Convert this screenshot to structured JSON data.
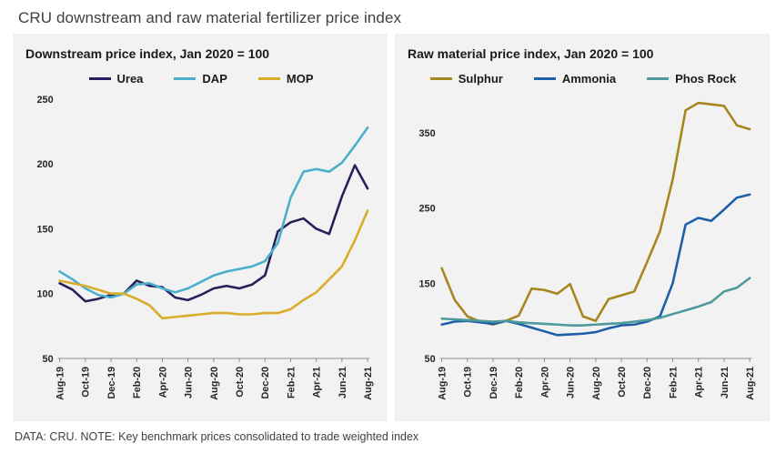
{
  "page": {
    "title": "CRU downstream and raw material fertilizer price index",
    "footnote": "DATA: CRU. NOTE: Key benchmark prices consolidated to trade weighted index"
  },
  "colors": {
    "panel_background": "#f2f2f2",
    "title_text": "#3f3f3f",
    "axis_text": "#262626",
    "axis_line": "#8c8c8c"
  },
  "chart_data": [
    {
      "type": "line",
      "title": "Downstream price index, Jan 2020 = 100",
      "x": [
        "Aug-19",
        "Sep-19",
        "Oct-19",
        "Nov-19",
        "Dec-19",
        "Jan-20",
        "Feb-20",
        "Mar-20",
        "Apr-20",
        "May-20",
        "Jun-20",
        "Jul-20",
        "Aug-20",
        "Sep-20",
        "Oct-20",
        "Nov-20",
        "Dec-20",
        "Jan-21",
        "Feb-21",
        "Mar-21",
        "Apr-21",
        "May-21",
        "Jun-21",
        "Jul-21",
        "Aug-21"
      ],
      "x_tick_every": 2,
      "xlabel": "",
      "ylabel": "",
      "ylim": [
        50,
        250
      ],
      "yticks": [
        50,
        100,
        150,
        200,
        250
      ],
      "grid": false,
      "legend_position": "top",
      "series": [
        {
          "name": "Urea",
          "color": "#26215A",
          "values": [
            108,
            103,
            94,
            96,
            99,
            100,
            110,
            106,
            105,
            97,
            95,
            99,
            104,
            106,
            104,
            107,
            114,
            148,
            155,
            158,
            150,
            146,
            175,
            199,
            181
          ]
        },
        {
          "name": "DAP",
          "color": "#4BAFCC",
          "values": [
            117,
            111,
            104,
            99,
            97,
            100,
            107,
            108,
            104,
            101,
            104,
            109,
            114,
            117,
            119,
            121,
            125,
            139,
            174,
            194,
            196,
            194,
            201,
            214,
            228
          ]
        },
        {
          "name": "MOP",
          "color": "#D9AC2A",
          "values": [
            110,
            108,
            106,
            103,
            100,
            100,
            96,
            91,
            81,
            82,
            83,
            84,
            85,
            85,
            84,
            84,
            85,
            85,
            88,
            95,
            101,
            111,
            121,
            141,
            164
          ]
        }
      ]
    },
    {
      "type": "line",
      "title": "Raw material price index, Jan 2020 = 100",
      "x": [
        "Aug-19",
        "Sep-19",
        "Oct-19",
        "Nov-19",
        "Dec-19",
        "Jan-20",
        "Feb-20",
        "Mar-20",
        "Apr-20",
        "May-20",
        "Jun-20",
        "Jul-20",
        "Aug-20",
        "Sep-20",
        "Oct-20",
        "Nov-20",
        "Dec-20",
        "Jan-21",
        "Feb-21",
        "Mar-21",
        "Apr-21",
        "May-21",
        "Jun-21",
        "Jul-21",
        "Aug-21"
      ],
      "x_tick_every": 2,
      "xlabel": "",
      "ylabel": "",
      "ylim": [
        50,
        395
      ],
      "yticks": [
        50,
        150,
        250,
        350
      ],
      "grid": false,
      "legend_position": "top",
      "series": [
        {
          "name": "Sulphur",
          "color": "#A6871E",
          "values": [
            170,
            128,
            106,
            99,
            95,
            100,
            107,
            143,
            141,
            136,
            149,
            106,
            100,
            129,
            134,
            139,
            178,
            219,
            288,
            380,
            390,
            388,
            386,
            360,
            355
          ]
        },
        {
          "name": "Ammonia",
          "color": "#1E5EA8",
          "values": [
            95,
            99,
            100,
            98,
            96,
            100,
            96,
            91,
            86,
            81,
            82,
            83,
            85,
            90,
            94,
            95,
            99,
            106,
            150,
            228,
            237,
            233,
            248,
            264,
            268
          ]
        },
        {
          "name": "Phos Rock",
          "color": "#4E999C",
          "values": [
            103,
            102,
            101,
            100,
            99,
            100,
            98,
            97,
            96,
            95,
            94,
            94,
            95,
            96,
            97,
            99,
            101,
            104,
            109,
            114,
            119,
            125,
            139,
            144,
            157
          ]
        }
      ]
    }
  ]
}
